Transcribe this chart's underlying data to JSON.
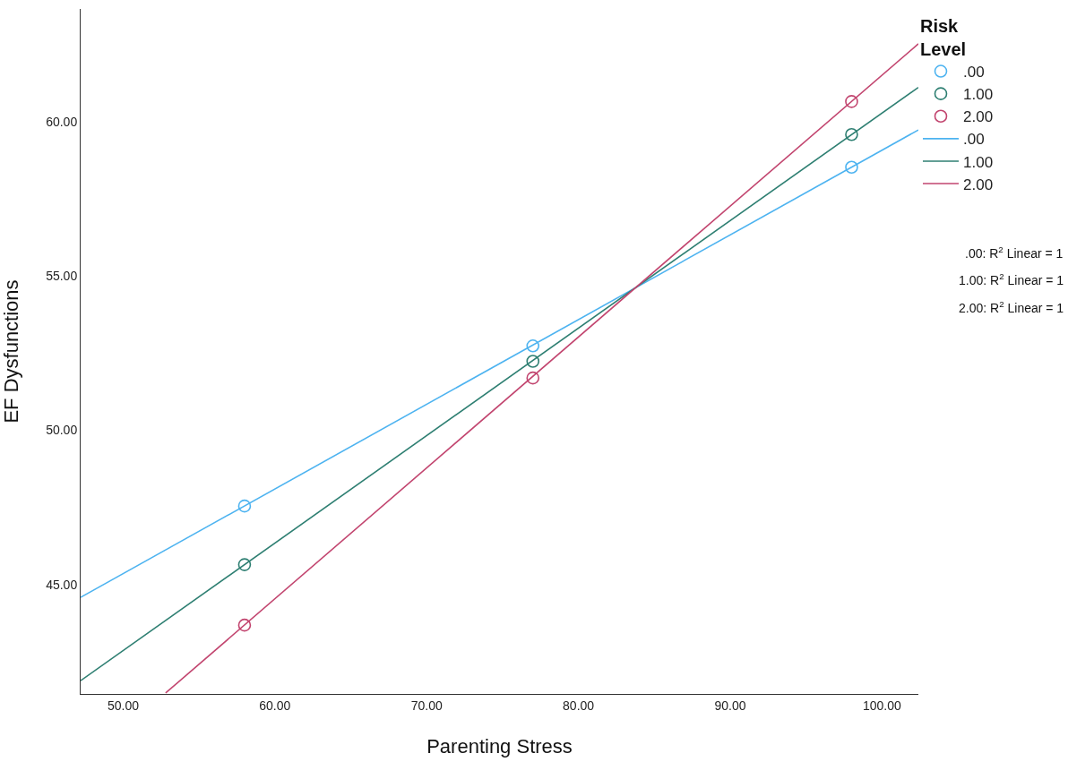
{
  "chart_data": {
    "type": "scatter",
    "xlabel": "Parenting Stress",
    "ylabel": "EF Dysfunctions",
    "legend_title": "Risk Level",
    "x": [
      58,
      77,
      98
    ],
    "series": [
      {
        "name": ".00",
        "marker": "circle",
        "color": "#4db3f0",
        "values": [
          47.54,
          52.73,
          58.52
        ]
      },
      {
        "name": "1.00",
        "marker": "circle",
        "color": "#2e7f72",
        "values": [
          45.64,
          52.23,
          59.58
        ]
      },
      {
        "name": "2.00",
        "marker": "circle",
        "color": "#c2456f",
        "values": [
          43.68,
          51.69,
          60.65
        ]
      },
      {
        "name": ".00",
        "type": "line",
        "marker": "none",
        "color": "#4db3f0",
        "x": [
          47.2,
          102.4
        ],
        "values": [
          44.58,
          59.73
        ]
      },
      {
        "name": "1.00",
        "type": "line",
        "marker": "none",
        "color": "#2e7f72",
        "x": [
          47.2,
          102.4
        ],
        "values": [
          41.88,
          61.11
        ]
      },
      {
        "name": "2.00",
        "type": "line",
        "marker": "none",
        "color": "#c2456f",
        "x": [
          52.8,
          102.4
        ],
        "values": [
          41.48,
          62.52
        ]
      }
    ],
    "xlim": [
      47.2,
      102.4
    ],
    "ylim": [
      41.45,
      63.65
    ],
    "xticks": [
      {
        "value": 50,
        "label": "50.00"
      },
      {
        "value": 60,
        "label": "60.00"
      },
      {
        "value": 70,
        "label": "70.00"
      },
      {
        "value": 80,
        "label": "80.00"
      },
      {
        "value": 90,
        "label": "90.00"
      },
      {
        "value": 100,
        "label": "100.00"
      }
    ],
    "yticks": [
      {
        "value": 45,
        "label": "45.00"
      },
      {
        "value": 50,
        "label": "50.00"
      },
      {
        "value": 55,
        "label": "55.00"
      },
      {
        "value": 60,
        "label": "60.00"
      }
    ],
    "annotations": [
      ".00: R$^{2}$ Linear = 1",
      "1.00: R$^{2}$ Linear = 1",
      "2.00: R$^{2}$ Linear = 1"
    ],
    "grid": false,
    "legend": "top right",
    "line_style": "solid"
  }
}
